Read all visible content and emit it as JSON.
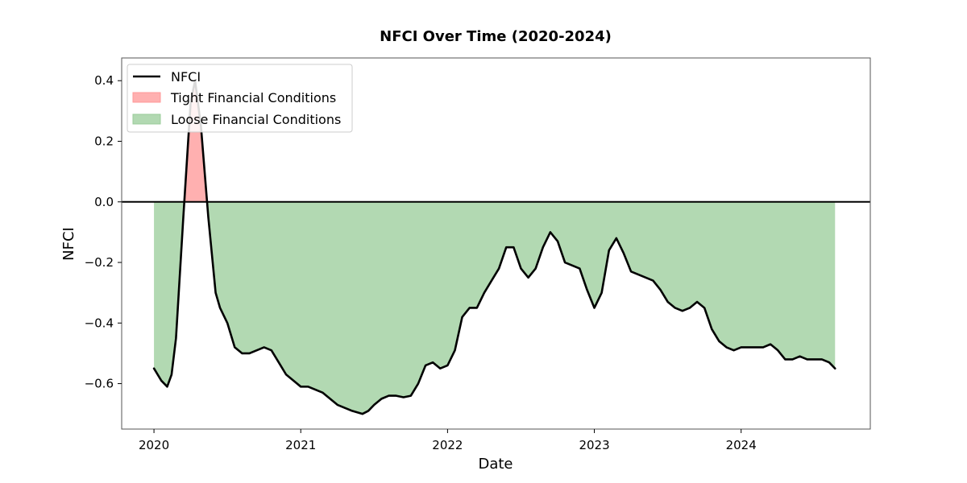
{
  "chart_data": {
    "type": "area",
    "title": "NFCI Over Time (2020-2024)",
    "xlabel": "Date",
    "ylabel": "NFCI",
    "xlim": [
      2019.78,
      2024.88
    ],
    "ylim": [
      -0.75,
      0.475
    ],
    "x_ticks": [
      2020,
      2021,
      2022,
      2023,
      2024
    ],
    "x_tick_labels": [
      "2020",
      "2021",
      "2022",
      "2023",
      "2024"
    ],
    "y_ticks": [
      0.4,
      0.2,
      0.0,
      -0.2,
      -0.4,
      -0.6
    ],
    "y_tick_labels": [
      "0.4",
      "0.2",
      "0.0",
      "−0.2",
      "−0.4",
      "−0.6"
    ],
    "reference_line": 0.0,
    "legend": {
      "placement": "top-left",
      "entries": [
        {
          "label": "NFCI",
          "kind": "line",
          "color": "#000000"
        },
        {
          "label": "Tight Financial Conditions",
          "kind": "fill",
          "color": "#ff9999"
        },
        {
          "label": "Loose Financial Conditions",
          "kind": "fill",
          "color": "#99cc99"
        }
      ]
    },
    "colors": {
      "line": "#000000",
      "tight_fill": "#ffb0b0",
      "loose_fill": "#b2d9b2"
    },
    "series": [
      {
        "name": "NFCI",
        "x": [
          2020.0,
          2020.05,
          2020.09,
          2020.12,
          2020.15,
          2020.2,
          2020.25,
          2020.28,
          2020.32,
          2020.37,
          2020.42,
          2020.45,
          2020.5,
          2020.55,
          2020.6,
          2020.65,
          2020.7,
          2020.75,
          2020.8,
          2020.85,
          2020.9,
          2020.95,
          2021.0,
          2021.05,
          2021.1,
          2021.15,
          2021.2,
          2021.25,
          2021.3,
          2021.35,
          2021.42,
          2021.46,
          2021.5,
          2021.55,
          2021.6,
          2021.65,
          2021.7,
          2021.75,
          2021.8,
          2021.85,
          2021.9,
          2021.95,
          2022.0,
          2022.05,
          2022.1,
          2022.15,
          2022.2,
          2022.25,
          2022.3,
          2022.35,
          2022.4,
          2022.45,
          2022.5,
          2022.55,
          2022.6,
          2022.65,
          2022.7,
          2022.75,
          2022.8,
          2022.85,
          2022.9,
          2022.95,
          2023.0,
          2023.05,
          2023.1,
          2023.15,
          2023.2,
          2023.25,
          2023.3,
          2023.35,
          2023.4,
          2023.45,
          2023.5,
          2023.55,
          2023.6,
          2023.65,
          2023.7,
          2023.75,
          2023.8,
          2023.85,
          2023.9,
          2023.95,
          2024.0,
          2024.05,
          2024.1,
          2024.15,
          2024.2,
          2024.25,
          2024.3,
          2024.35,
          2024.4,
          2024.45,
          2024.5,
          2024.55,
          2024.6,
          2024.64
        ],
        "values": [
          -0.55,
          -0.59,
          -0.61,
          -0.57,
          -0.45,
          -0.05,
          0.33,
          0.4,
          0.25,
          -0.05,
          -0.3,
          -0.35,
          -0.4,
          -0.48,
          -0.5,
          -0.5,
          -0.49,
          -0.48,
          -0.49,
          -0.53,
          -0.57,
          -0.59,
          -0.61,
          -0.61,
          -0.62,
          -0.63,
          -0.65,
          -0.67,
          -0.68,
          -0.69,
          -0.7,
          -0.69,
          -0.67,
          -0.65,
          -0.64,
          -0.64,
          -0.645,
          -0.64,
          -0.6,
          -0.54,
          -0.53,
          -0.55,
          -0.54,
          -0.49,
          -0.38,
          -0.35,
          -0.35,
          -0.3,
          -0.26,
          -0.22,
          -0.15,
          -0.15,
          -0.22,
          -0.25,
          -0.22,
          -0.15,
          -0.1,
          -0.13,
          -0.2,
          -0.21,
          -0.22,
          -0.29,
          -0.35,
          -0.3,
          -0.16,
          -0.12,
          -0.17,
          -0.23,
          -0.24,
          -0.25,
          -0.26,
          -0.29,
          -0.33,
          -0.35,
          -0.36,
          -0.35,
          -0.33,
          -0.35,
          -0.42,
          -0.46,
          -0.48,
          -0.49,
          -0.48,
          -0.48,
          -0.48,
          -0.48,
          -0.47,
          -0.49,
          -0.52,
          -0.52,
          -0.51,
          -0.52,
          -0.52,
          -0.52,
          -0.53,
          -0.55
        ]
      }
    ]
  }
}
